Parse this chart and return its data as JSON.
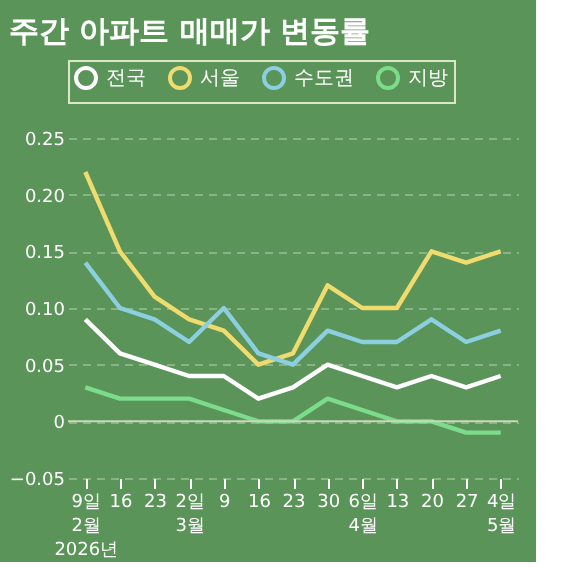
{
  "chart_data": {
    "type": "line",
    "title": "주간 아파트 매매가 변동률",
    "categories": [
      "9일\n2월\n2026년",
      "16",
      "23",
      "2일\n3월",
      "9",
      "16",
      "23",
      "30",
      "6일\n4월",
      "13",
      "20",
      "27",
      "4일\n5월"
    ],
    "series": [
      {
        "name": "전국",
        "color": "#ffffff",
        "values": [
          0.09,
          0.06,
          0.05,
          0.04,
          0.04,
          0.02,
          0.03,
          0.05,
          0.04,
          0.03,
          0.04,
          0.03,
          0.04
        ]
      },
      {
        "name": "서울",
        "color": "#f0dc6e",
        "values": [
          0.22,
          0.15,
          0.11,
          0.09,
          0.08,
          0.05,
          0.06,
          0.12,
          0.1,
          0.1,
          0.15,
          0.14,
          0.15
        ]
      },
      {
        "name": "수도권",
        "color": "#8ccfe0",
        "values": [
          0.14,
          0.1,
          0.09,
          0.07,
          0.1,
          0.06,
          0.05,
          0.08,
          0.07,
          0.07,
          0.09,
          0.07,
          0.08
        ]
      },
      {
        "name": "지방",
        "color": "#7cdc8c",
        "values": [
          0.03,
          0.02,
          0.02,
          0.02,
          0.01,
          0.0,
          0.0,
          0.02,
          0.01,
          0.0,
          0.0,
          -0.01,
          -0.01
        ]
      }
    ],
    "ylim": [
      -0.05,
      0.25
    ],
    "yticks": [
      {
        "value": -0.05,
        "label": "−0.05"
      },
      0,
      {
        "value": 0.05,
        "label": "0.05"
      },
      {
        "value": 0.1,
        "label": "0.10"
      },
      {
        "value": 0.15,
        "label": "0.15"
      },
      {
        "value": 0.2,
        "label": "0.20"
      },
      {
        "value": 0.25,
        "label": "0.25"
      }
    ],
    "ref_lines": [
      {
        "axis": "y",
        "value": 0,
        "color": "#c8d8b8"
      }
    ],
    "grid": "y",
    "legend": "top",
    "line_style": "solid"
  }
}
